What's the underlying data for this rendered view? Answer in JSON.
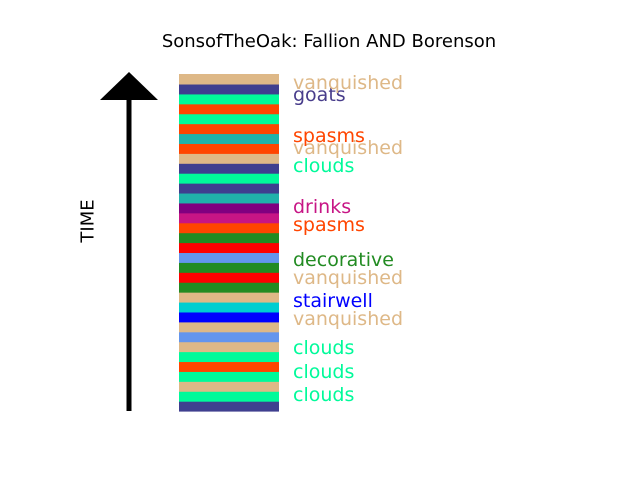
{
  "chart_data": {
    "type": "bar",
    "title": "SonsofTheOak: Fallion AND Borenson",
    "ylabel": "TIME",
    "bands": [
      {
        "color": "#3f3f8f"
      },
      {
        "color": "#00fa9a"
      },
      {
        "color": "#deb887"
      },
      {
        "color": "#00fa9a"
      },
      {
        "color": "#ff4500"
      },
      {
        "color": "#00fa9a"
      },
      {
        "color": "#deb887"
      },
      {
        "color": "#6495ed"
      },
      {
        "color": "#deb887"
      },
      {
        "color": "#0000ff"
      },
      {
        "color": "#00ced1"
      },
      {
        "color": "#deb887"
      },
      {
        "color": "#228b22"
      },
      {
        "color": "#ff0000"
      },
      {
        "color": "#228b22"
      },
      {
        "color": "#6495ed"
      },
      {
        "color": "#ff0000"
      },
      {
        "color": "#228b22"
      },
      {
        "color": "#ff4500"
      },
      {
        "color": "#c71585"
      },
      {
        "color": "#800080"
      },
      {
        "color": "#20b2aa"
      },
      {
        "color": "#3f3f8f"
      },
      {
        "color": "#00fa9a"
      },
      {
        "color": "#3f3f8f"
      },
      {
        "color": "#deb887"
      },
      {
        "color": "#ff4500"
      },
      {
        "color": "#20b2aa"
      },
      {
        "color": "#ff4500"
      },
      {
        "color": "#00fa9a"
      },
      {
        "color": "#ff4500"
      },
      {
        "color": "#00fa9a"
      },
      {
        "color": "#3f3f8f"
      },
      {
        "color": "#deb887"
      }
    ],
    "labels": [
      {
        "text": "clouds",
        "color": "#00fa9a"
      },
      {
        "text": "clouds",
        "color": "#00fa9a"
      },
      {
        "text": "clouds",
        "color": "#00fa9a"
      },
      {
        "text": "vanquished",
        "color": "#deb887"
      },
      {
        "text": "stairwell",
        "color": "#0000ff"
      },
      {
        "text": "vanquished",
        "color": "#deb887"
      },
      {
        "text": "decorative",
        "color": "#228b22"
      },
      {
        "text": "spasms",
        "color": "#ff4500"
      },
      {
        "text": "drinks",
        "color": "#c71585"
      },
      {
        "text": "clouds",
        "color": "#00fa9a"
      },
      {
        "text": "vanquished",
        "color": "#deb887"
      },
      {
        "text": "spasms",
        "color": "#ff4500"
      },
      {
        "text": "goats",
        "color": "#483d8b"
      },
      {
        "text": "vanquished",
        "color": "#deb887"
      }
    ]
  }
}
